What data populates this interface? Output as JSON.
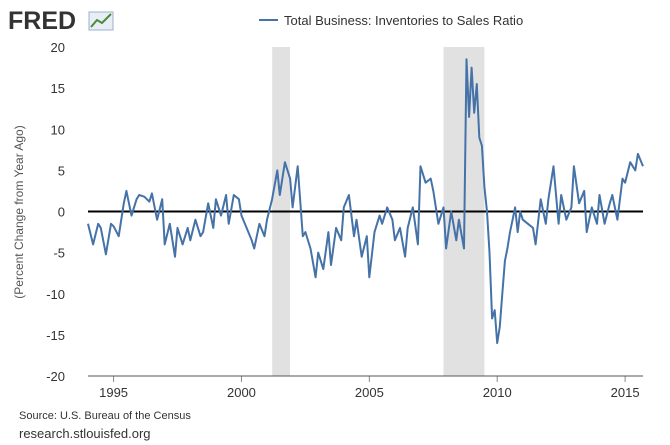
{
  "brand": {
    "logo_text": "FRED"
  },
  "source": {
    "text": "Source: U.S. Bureau of the Census",
    "site": "research.stlouisfed.org"
  },
  "colors": {
    "series": "#4572a7",
    "recession": "#e1e1e1",
    "zero_line": "#000000",
    "text": "#333333"
  },
  "chart_data": {
    "type": "line",
    "title": "",
    "legend": [
      "Total Business: Inventories to Sales Ratio"
    ],
    "legend_position": "top-center",
    "xlabel": "",
    "ylabel": "(Percent Change from Year Ago)",
    "xlim": [
      1994.0,
      2015.7
    ],
    "ylim": [
      -20,
      20
    ],
    "yticks": [
      20,
      15,
      10,
      5,
      0,
      -5,
      -10,
      -15,
      -20
    ],
    "xticks": [
      1995,
      2000,
      2005,
      2010,
      2015
    ],
    "grid": false,
    "recessions": [
      [
        2001.2,
        2001.9
      ],
      [
        2007.9,
        2009.5
      ]
    ],
    "series": [
      {
        "name": "Total Business: Inventories to Sales Ratio",
        "x": [
          1994.0,
          1994.2,
          1994.4,
          1994.5,
          1994.7,
          1994.9,
          1995.0,
          1995.2,
          1995.4,
          1995.5,
          1995.7,
          1995.9,
          1996.0,
          1996.2,
          1996.4,
          1996.5,
          1996.7,
          1996.9,
          1997.0,
          1997.2,
          1997.4,
          1997.5,
          1997.7,
          1997.9,
          1998.0,
          1998.2,
          1998.4,
          1998.5,
          1998.7,
          1998.9,
          1999.0,
          1999.2,
          1999.4,
          1999.5,
          1999.7,
          1999.9,
          2000.0,
          2000.2,
          2000.4,
          2000.5,
          2000.7,
          2000.9,
          2001.0,
          2001.2,
          2001.4,
          2001.5,
          2001.7,
          2001.9,
          2002.0,
          2002.2,
          2002.4,
          2002.5,
          2002.7,
          2002.9,
          2003.0,
          2003.2,
          2003.4,
          2003.5,
          2003.7,
          2003.9,
          2004.0,
          2004.2,
          2004.4,
          2004.5,
          2004.7,
          2004.9,
          2005.0,
          2005.2,
          2005.4,
          2005.5,
          2005.7,
          2005.9,
          2006.0,
          2006.2,
          2006.4,
          2006.5,
          2006.7,
          2006.9,
          2007.0,
          2007.2,
          2007.4,
          2007.5,
          2007.7,
          2007.9,
          2008.0,
          2008.2,
          2008.4,
          2008.5,
          2008.7,
          2008.8,
          2008.9,
          2009.0,
          2009.1,
          2009.2,
          2009.3,
          2009.4,
          2009.5,
          2009.6,
          2009.7,
          2009.8,
          2009.9,
          2010.0,
          2010.1,
          2010.2,
          2010.3,
          2010.4,
          2010.5,
          2010.6,
          2010.7,
          2010.8,
          2010.9,
          2011.0,
          2011.2,
          2011.4,
          2011.5,
          2011.7,
          2011.9,
          2012.0,
          2012.2,
          2012.4,
          2012.5,
          2012.7,
          2012.9,
          2013.0,
          2013.2,
          2013.4,
          2013.5,
          2013.7,
          2013.9,
          2014.0,
          2014.2,
          2014.4,
          2014.5,
          2014.7,
          2014.9,
          2015.0,
          2015.2,
          2015.4,
          2015.5,
          2015.7
        ],
        "values": [
          -1.5,
          -4.0,
          -1.5,
          -2.0,
          -5.2,
          -1.5,
          -1.8,
          -3.0,
          1.0,
          2.5,
          -0.5,
          1.5,
          2.0,
          1.8,
          1.2,
          2.2,
          -1.0,
          1.5,
          -4.0,
          -1.5,
          -5.5,
          -2.0,
          -4.0,
          -2.0,
          -3.5,
          -1.0,
          -3.0,
          -2.5,
          1.0,
          -2.0,
          1.5,
          -0.5,
          2.0,
          -1.5,
          2.0,
          1.5,
          -0.5,
          -2.0,
          -3.5,
          -4.5,
          -1.5,
          -3.0,
          -1.0,
          1.5,
          5.0,
          2.0,
          6.0,
          4.0,
          0.5,
          5.5,
          -3.0,
          -2.5,
          -4.5,
          -8.0,
          -5.0,
          -7.0,
          -2.5,
          -6.5,
          -2.0,
          -3.5,
          0.5,
          2.0,
          -3.0,
          -1.0,
          -5.5,
          -3.0,
          -8.0,
          -2.5,
          -0.5,
          -1.5,
          0.5,
          -1.0,
          -3.5,
          -2.0,
          -5.5,
          -2.0,
          0.5,
          -4.0,
          5.5,
          3.5,
          4.0,
          2.5,
          -1.5,
          0.5,
          -4.5,
          0.0,
          -3.5,
          -1.0,
          -4.5,
          18.5,
          11.5,
          17.5,
          12.0,
          15.5,
          9.0,
          8.0,
          3.0,
          0.0,
          -5.0,
          -13.0,
          -12.0,
          -16.0,
          -14.0,
          -10.0,
          -6.0,
          -4.5,
          -2.5,
          -1.0,
          0.5,
          -2.5,
          0.0,
          -1.0,
          -1.5,
          -2.0,
          -4.0,
          1.5,
          -1.5,
          1.5,
          5.5,
          -1.5,
          2.0,
          -1.0,
          0.5,
          5.5,
          1.0,
          2.5,
          -2.5,
          0.5,
          -1.5,
          2.0,
          -1.5,
          1.0,
          2.0,
          -1.0,
          4.0,
          3.5,
          6.0,
          5.0,
          7.0,
          5.5
        ]
      }
    ]
  }
}
